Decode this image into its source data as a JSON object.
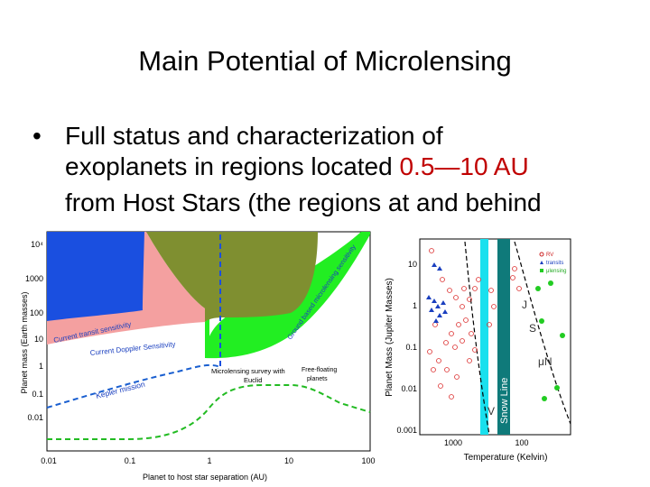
{
  "slide": {
    "title": "Main Potential of Microlensing",
    "bullet": {
      "marker": "•",
      "line1": "Full status and characterization of",
      "line2_pre": "exoplanets in regions located ",
      "line2_highlight": "0.5—10 AU",
      "line3": "from Host Stars (the regions at and behind"
    }
  },
  "left_figure": {
    "xlabel": "Planet to host star separation (AU)",
    "ylabel": "Planet mass (Earth masses)",
    "x_ticks": [
      "0.01",
      "0.1",
      "1",
      "10",
      "100"
    ],
    "y_ticks": [
      "10⁴",
      "1000",
      "100",
      "10",
      "1",
      "0.1",
      "0.01"
    ],
    "labels": {
      "transit": "Current transit sensitivity",
      "doppler": "Current Doppler Sensitivity",
      "ground": "Ground based microlensing sensitivity",
      "kepler": "Kepler mission",
      "euclid_line1": "Microlensing survey with",
      "euclid_line2": "Euclid",
      "freefloat_line1": "Free-floating",
      "freefloat_line2": "planets"
    },
    "colors": {
      "transit": "#1a4fe0",
      "doppler": "#f4a0a0",
      "ground": "#22ee22",
      "overlap": "#7f8f30",
      "kepler": "#1a5fd0",
      "euclid": "#22bb22"
    }
  },
  "right_figure": {
    "xlabel": "Temperature (Kelvin)",
    "ylabel": "Planet Mass (Jupiter Masses)",
    "x_ticks": [
      "1000",
      "100"
    ],
    "y_ticks": [
      "10",
      "1",
      "0.1",
      "0.01",
      "0.001"
    ],
    "snow_line": "Snow Line",
    "legend": [
      "RV",
      "transits",
      "μlensing"
    ],
    "planet_labels": {
      "j": "J",
      "s": "S",
      "n": "μN",
      "v": "V"
    }
  }
}
